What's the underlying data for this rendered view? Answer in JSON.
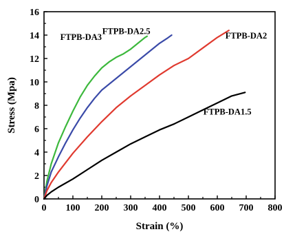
{
  "chart_data": {
    "type": "line",
    "title": "",
    "xlabel": "Strain (%)",
    "ylabel": "Stress (Mpa)",
    "xlim": [
      0,
      800
    ],
    "ylim": [
      0,
      16
    ],
    "xticks": [
      0,
      100,
      200,
      300,
      400,
      500,
      600,
      700,
      800
    ],
    "yticks": [
      0,
      2,
      4,
      6,
      8,
      10,
      12,
      14,
      16
    ],
    "grid": false,
    "legend": "inline labels",
    "series": [
      {
        "name": "FTPB-DA3",
        "color": "#3cb83c",
        "points": [
          [
            0,
            0
          ],
          [
            10,
            1.5
          ],
          [
            25,
            3.0
          ],
          [
            50,
            4.8
          ],
          [
            75,
            6.2
          ],
          [
            100,
            7.5
          ],
          [
            125,
            8.7
          ],
          [
            150,
            9.7
          ],
          [
            175,
            10.5
          ],
          [
            200,
            11.2
          ],
          [
            225,
            11.7
          ],
          [
            250,
            12.1
          ],
          [
            275,
            12.4
          ],
          [
            300,
            12.8
          ],
          [
            325,
            13.3
          ],
          [
            350,
            13.8
          ],
          [
            357,
            13.9
          ]
        ]
      },
      {
        "name": "FTPB-DA2.5",
        "color": "#3a4aa8",
        "points": [
          [
            0,
            0
          ],
          [
            10,
            1.1
          ],
          [
            25,
            2.3
          ],
          [
            50,
            3.6
          ],
          [
            75,
            4.8
          ],
          [
            100,
            5.9
          ],
          [
            125,
            6.9
          ],
          [
            150,
            7.8
          ],
          [
            175,
            8.6
          ],
          [
            200,
            9.3
          ],
          [
            225,
            9.8
          ],
          [
            250,
            10.3
          ],
          [
            275,
            10.8
          ],
          [
            300,
            11.3
          ],
          [
            325,
            11.8
          ],
          [
            350,
            12.3
          ],
          [
            375,
            12.8
          ],
          [
            400,
            13.3
          ],
          [
            425,
            13.7
          ],
          [
            442,
            14.0
          ]
        ]
      },
      {
        "name": "FTPB-DA2",
        "color": "#e03a2f",
        "points": [
          [
            0,
            0
          ],
          [
            10,
            0.7
          ],
          [
            25,
            1.4
          ],
          [
            50,
            2.3
          ],
          [
            100,
            3.9
          ],
          [
            150,
            5.3
          ],
          [
            200,
            6.6
          ],
          [
            250,
            7.8
          ],
          [
            300,
            8.8
          ],
          [
            350,
            9.7
          ],
          [
            400,
            10.6
          ],
          [
            450,
            11.4
          ],
          [
            500,
            12.0
          ],
          [
            550,
            12.9
          ],
          [
            600,
            13.8
          ],
          [
            640,
            14.4
          ]
        ]
      },
      {
        "name": "FTPB-DA1.5",
        "color": "#000000",
        "points": [
          [
            0,
            0
          ],
          [
            10,
            0.3
          ],
          [
            25,
            0.6
          ],
          [
            50,
            1.0
          ],
          [
            100,
            1.7
          ],
          [
            150,
            2.5
          ],
          [
            200,
            3.3
          ],
          [
            250,
            4.0
          ],
          [
            300,
            4.7
          ],
          [
            350,
            5.3
          ],
          [
            400,
            5.9
          ],
          [
            450,
            6.4
          ],
          [
            500,
            7.0
          ],
          [
            550,
            7.6
          ],
          [
            600,
            8.2
          ],
          [
            650,
            8.8
          ],
          [
            696,
            9.1
          ]
        ]
      }
    ],
    "annotations": [
      {
        "text": "FTPB-DA3",
        "x": 200,
        "y": 13.6,
        "anchor": "end"
      },
      {
        "text": "FTPB-DA2.5",
        "x": 285,
        "y": 14.1,
        "anchor": "middle"
      },
      {
        "text": "FTPB-DA2",
        "x": 700,
        "y": 13.7,
        "anchor": "middle"
      },
      {
        "text": "FTPB-DA1.5",
        "x": 635,
        "y": 7.2,
        "anchor": "middle"
      }
    ]
  }
}
